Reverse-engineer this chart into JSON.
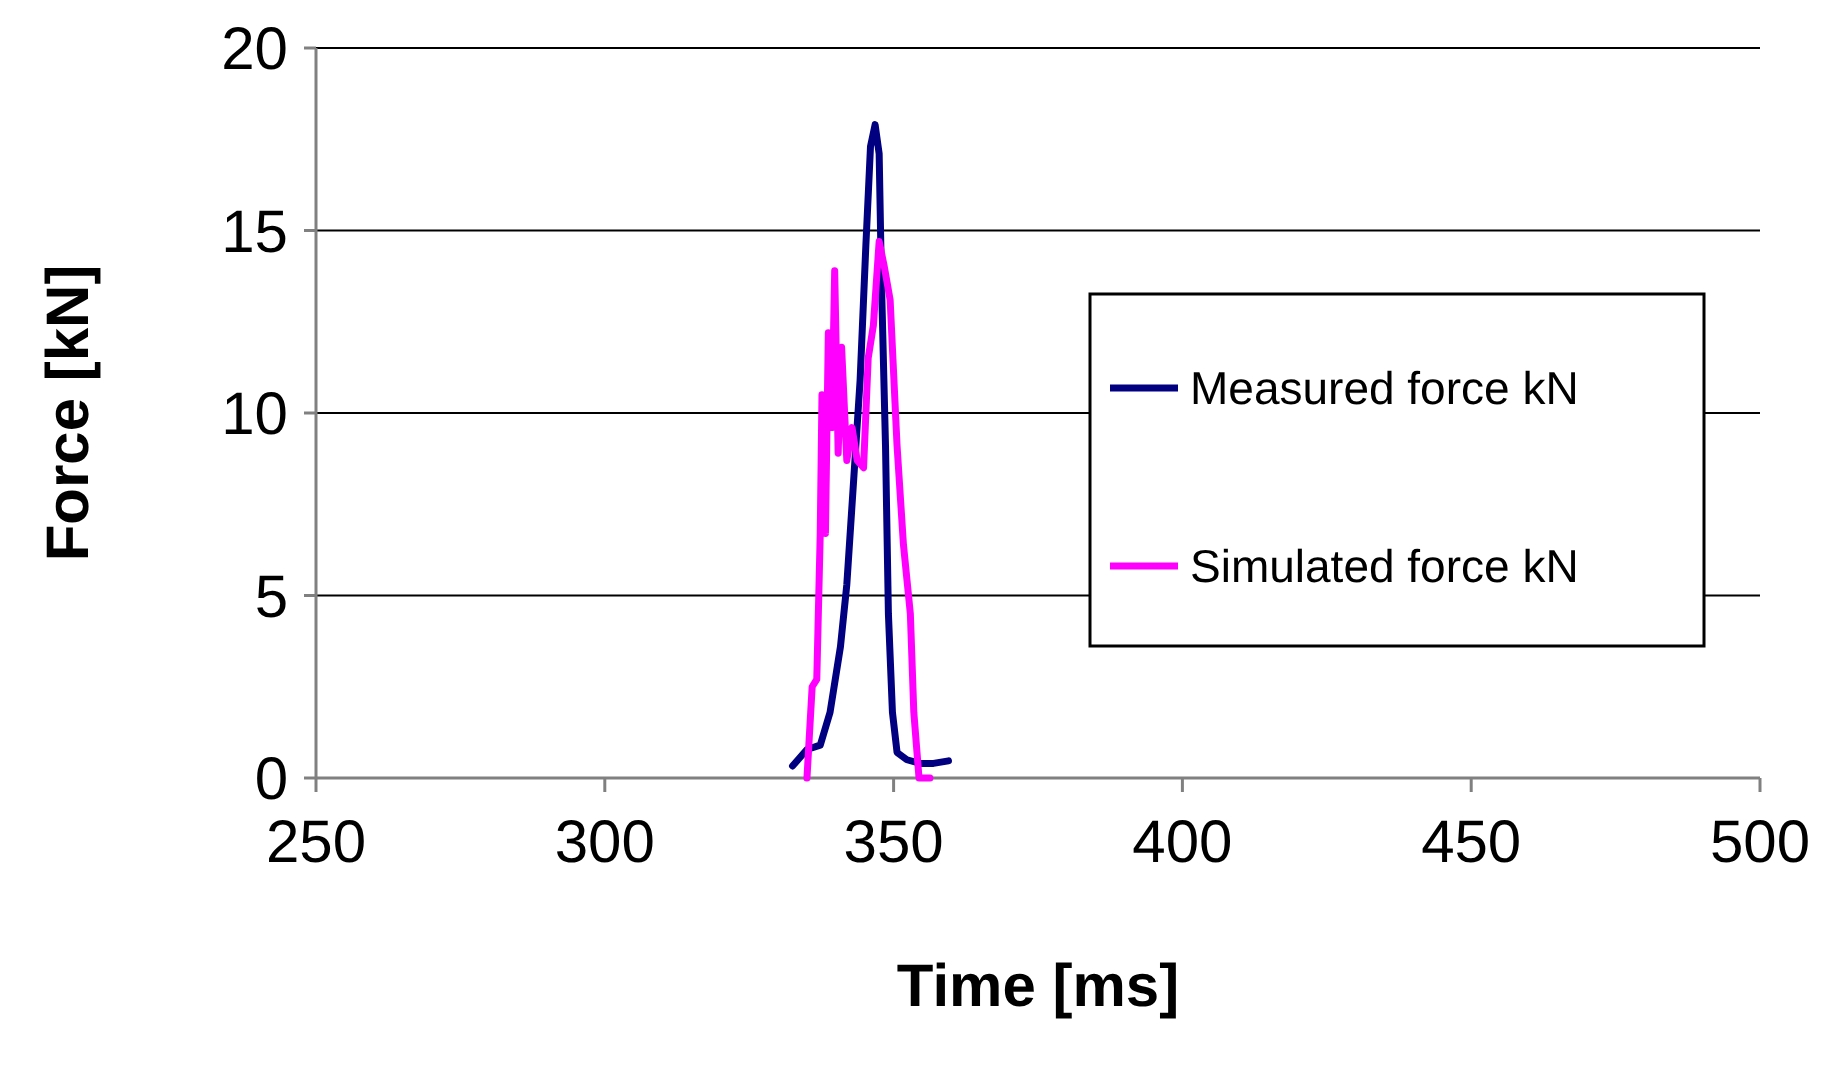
{
  "chart_data": {
    "type": "line",
    "xlabel": "Time [ms]",
    "ylabel": "Force [kN]",
    "xlim": [
      250,
      500
    ],
    "xticks": [
      250,
      300,
      350,
      400,
      450,
      500
    ],
    "ylim": [
      0,
      20
    ],
    "yticks": [
      0,
      5,
      10,
      15,
      20
    ],
    "grid": "y",
    "legend": "right",
    "marker": "none",
    "line_style": "solid",
    "series": [
      {
        "name": "Measured force kN",
        "color": "#000080",
        "x": [
          332.5,
          335,
          337.3,
          339,
          340.8,
          341.9,
          343.1,
          344.2,
          345.2,
          346,
          346.8,
          347.5,
          347.9,
          348.6,
          349.1,
          349.8,
          350.6,
          352.3,
          354.6,
          356.9,
          359.5
        ],
        "values": [
          0.33,
          0.78,
          0.9,
          1.8,
          3.6,
          5.3,
          8.2,
          10.9,
          14.6,
          17.3,
          17.9,
          17.1,
          13.6,
          9.1,
          4.5,
          1.8,
          0.7,
          0.5,
          0.4,
          0.4,
          0.47
        ]
      },
      {
        "name": "Simulated force kN",
        "color": "#ff00ff",
        "x": [
          335,
          335.9,
          336.7,
          337.3,
          337.6,
          338.2,
          338.7,
          339.3,
          339.8,
          340.4,
          341,
          341.9,
          342.8,
          343.7,
          344.8,
          345.6,
          346.5,
          347.5,
          348.4,
          349.4,
          350.6,
          351.7,
          352.9,
          353.5,
          354.4,
          356.3
        ],
        "values": [
          0,
          2.5,
          2.7,
          6.7,
          10.5,
          6.7,
          12.2,
          9.6,
          13.9,
          8.9,
          11.8,
          8.7,
          9.6,
          8.7,
          8.5,
          11.5,
          12.4,
          14.7,
          14,
          13.1,
          9.1,
          6.4,
          4.5,
          1.8,
          0,
          0
        ]
      }
    ]
  }
}
